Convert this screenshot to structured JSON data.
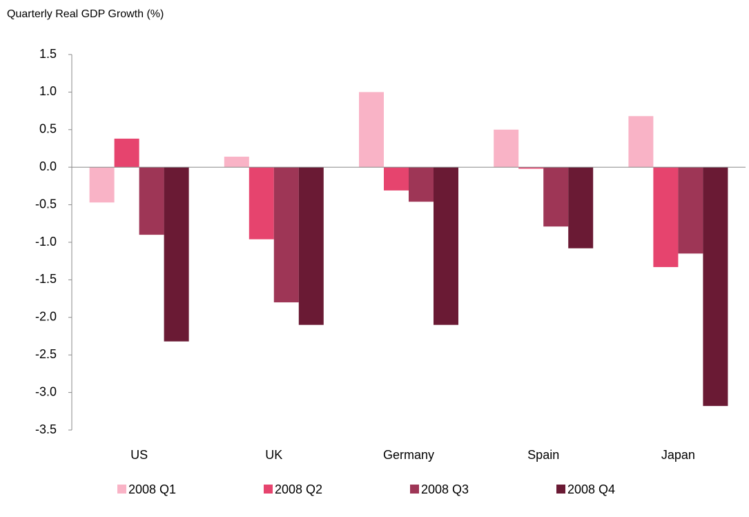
{
  "chart_data": {
    "type": "bar",
    "title": "Quarterly Real GDP Growth (%)",
    "categories": [
      "US",
      "UK",
      "Germany",
      "Spain",
      "Japan"
    ],
    "series": [
      {
        "name": "2008 Q1",
        "color": "#f9b3c6",
        "values": [
          -0.47,
          0.14,
          1.0,
          0.5,
          0.68
        ]
      },
      {
        "name": "2008 Q2",
        "color": "#e6446e",
        "values": [
          0.38,
          -0.96,
          -0.31,
          -0.02,
          -1.33
        ]
      },
      {
        "name": "2008 Q3",
        "color": "#9e3656",
        "values": [
          -0.9,
          -1.8,
          -0.46,
          -0.79,
          -1.15
        ]
      },
      {
        "name": "2008 Q4",
        "color": "#6a1a34",
        "values": [
          -2.32,
          -2.1,
          -2.1,
          -1.08,
          -3.18
        ]
      }
    ],
    "ylim": [
      -3.5,
      1.5
    ],
    "yticks": [
      1.5,
      {
        "value": 1,
        "label": "1.0"
      },
      0.5,
      {
        "value": 0,
        "label": "0.0"
      },
      -0.5,
      {
        "value": -1,
        "label": "-1.0"
      },
      -1.5,
      {
        "value": -2,
        "label": "-2.0"
      },
      -2.5,
      {
        "value": -3,
        "label": "-3.0"
      },
      -3.5
    ],
    "legend": "bottom"
  }
}
